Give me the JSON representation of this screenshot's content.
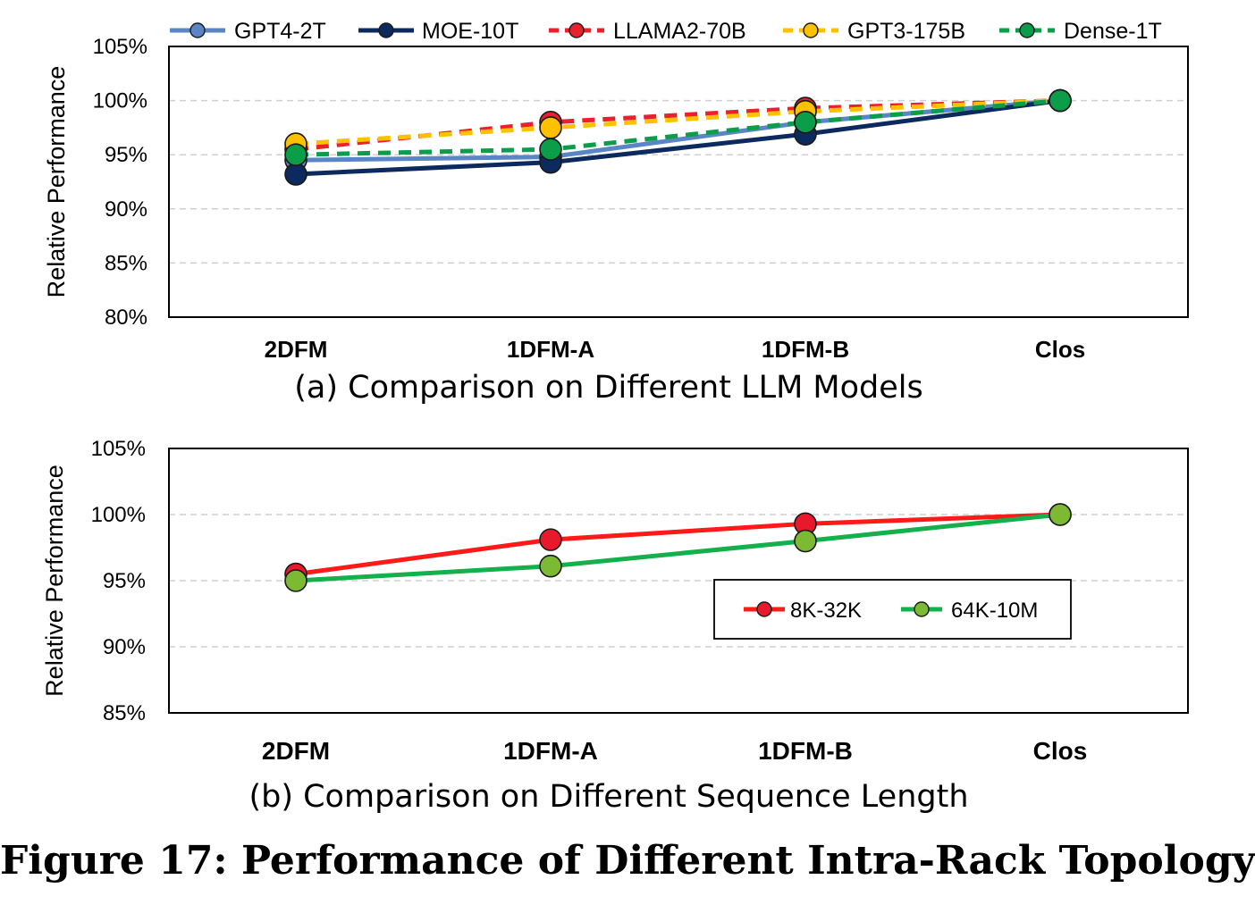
{
  "figure_title": "Figure 17: Performance of Different Intra-Rack Topology",
  "chart_data": [
    {
      "id": "a",
      "type": "line",
      "caption": "(a)  Comparison on Different LLM Models",
      "ylabel": "Relative Performance",
      "xlabel": "",
      "categories": [
        "2DFM",
        "1DFM-A",
        "1DFM-B",
        "Clos"
      ],
      "yticks": [
        "80%",
        "85%",
        "90%",
        "95%",
        "100%",
        "105%"
      ],
      "ylim": [
        80,
        105
      ],
      "grid": true,
      "legend_position": "top",
      "series": [
        {
          "name": "GPT4-2T",
          "values": [
            94.5,
            94.8,
            98.0,
            100
          ],
          "color": "#5b86c5",
          "dashed": false
        },
        {
          "name": "MOE-10T",
          "values": [
            93.2,
            94.3,
            96.9,
            100
          ],
          "color": "#0d2a5e",
          "dashed": false
        },
        {
          "name": "LLAMA2-70B",
          "values": [
            95.5,
            98.0,
            99.3,
            100
          ],
          "color": "#e8212c",
          "dashed": true
        },
        {
          "name": "GPT3-175B",
          "values": [
            96.0,
            97.5,
            99.0,
            100
          ],
          "color": "#ffc000",
          "dashed": true
        },
        {
          "name": "Dense-1T",
          "values": [
            95.0,
            95.5,
            98.0,
            100
          ],
          "color": "#0b9d4a",
          "dashed": true
        }
      ]
    },
    {
      "id": "b",
      "type": "line",
      "caption": "(b)  Comparison on Different Sequence Length",
      "ylabel": "Relative Performance",
      "xlabel": "",
      "categories": [
        "2DFM",
        "1DFM-A",
        "1DFM-B",
        "Clos"
      ],
      "yticks": [
        "85%",
        "90%",
        "95%",
        "100%",
        "105%"
      ],
      "ylim": [
        85,
        105
      ],
      "grid": true,
      "legend_position": "center-right",
      "series": [
        {
          "name": "8K-32K",
          "values": [
            95.5,
            98.1,
            99.3,
            100
          ],
          "color": "#ff1a1a",
          "marker_color": "#e8192c",
          "dashed": false
        },
        {
          "name": "64K-10M",
          "values": [
            95.0,
            96.1,
            98.0,
            100
          ],
          "color": "#13b04b",
          "marker_color": "#7cba34",
          "dashed": false
        }
      ]
    }
  ]
}
